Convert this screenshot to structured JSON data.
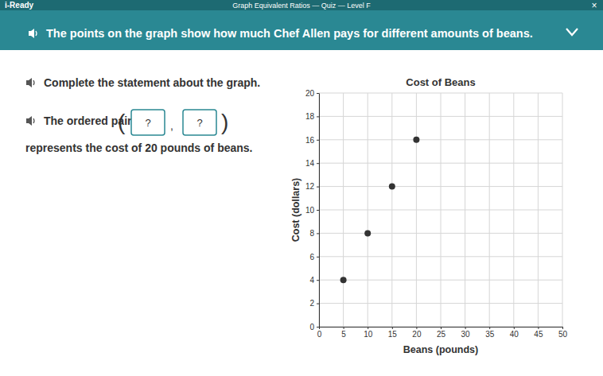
{
  "header": {
    "app": "i-Ready",
    "title": "Graph Equivalent Ratios — Quiz — Level F",
    "close": "×"
  },
  "banner": {
    "text": "The points on the graph show how much Chef Allen pays for different amounts of beans."
  },
  "question": {
    "prompt": "Complete the statement about the graph.",
    "before": "The ordered pair",
    "open": "(",
    "blanks": [
      "?",
      "?"
    ],
    "separator": ",",
    "close": ")",
    "after": "represents the cost of 20 pounds of beans."
  },
  "chart_data": {
    "type": "scatter",
    "title": "Cost of Beans",
    "x_label": "Beans (pounds)",
    "y_label": "Cost (dollars)",
    "x": [
      5,
      10,
      15,
      20
    ],
    "values": [
      4,
      8,
      12,
      16
    ],
    "color": "#333333",
    "marker": "circle",
    "xlim": [
      0,
      50
    ],
    "xticks": [
      0,
      5,
      10,
      15,
      20,
      25,
      30,
      35,
      40,
      45,
      50
    ],
    "ylim": [
      0,
      20
    ],
    "yticks": [
      0,
      2,
      4,
      6,
      8,
      10,
      12,
      14,
      16,
      18,
      20
    ],
    "grid": true
  }
}
